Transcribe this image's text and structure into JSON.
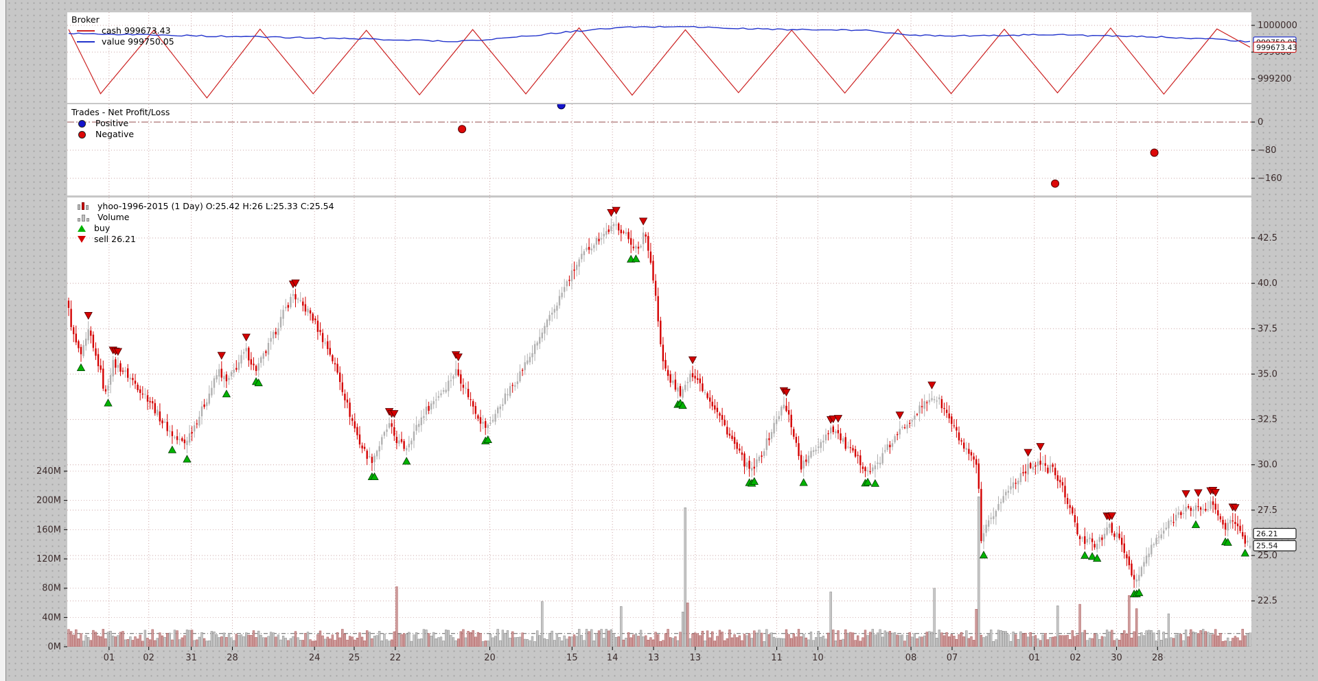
{
  "colors": {
    "bg": "#c7c7c7",
    "panel": "#ffffff",
    "grid": "#a05a5a",
    "tick_label": "#3b2b2b",
    "cash_line": "#cc2222",
    "value_line": "#2233cc",
    "positive_dot": "#1414cc",
    "negative_dot": "#dd0808",
    "candle_up": "#b0b0b0",
    "candle_down": "#d40000",
    "buy_marker": "#00b300",
    "sell_marker": "#d40000"
  },
  "broker": {
    "legend": {
      "title": "Broker",
      "items": [
        {
          "name": "cash",
          "label": "cash 999673.43"
        },
        {
          "name": "value",
          "label": "value 999750.05"
        }
      ]
    },
    "y_ticks": [
      {
        "label": "1000000",
        "value": 1000000
      },
      {
        "label": "999600",
        "value": 999600
      },
      {
        "label": "999200",
        "value": 999200
      }
    ],
    "tags": [
      {
        "label": "999750.05",
        "value": 999750.05,
        "series": "value"
      },
      {
        "label": "999673.43",
        "value": 999673.43,
        "series": "cash"
      }
    ]
  },
  "trades": {
    "legend": {
      "title": "Trades - Net Profit/Loss",
      "items": [
        {
          "name": "positive",
          "label": "Positive"
        },
        {
          "name": "negative",
          "label": "Negative"
        }
      ]
    },
    "y_ticks": [
      {
        "label": "0",
        "value": 0
      },
      {
        "label": "−80",
        "value": -80
      },
      {
        "label": "−160",
        "value": -160
      }
    ]
  },
  "main": {
    "legend": [
      {
        "icon": "candlestick-icon",
        "label": "yhoo-1996-2015 (1 Day) O:25.42 H:26 L:25.33 C:25.54"
      },
      {
        "icon": "volume-bars-icon",
        "label": "Volume"
      },
      {
        "icon": "buy-triangle-icon",
        "label": "buy"
      },
      {
        "icon": "sell-triangle-icon",
        "label": "sell 26.21"
      }
    ],
    "price_ticks": [
      {
        "label": "42.5",
        "value": 42.5
      },
      {
        "label": "40.0",
        "value": 40.0
      },
      {
        "label": "37.5",
        "value": 37.5
      },
      {
        "label": "35.0",
        "value": 35.0
      },
      {
        "label": "32.5",
        "value": 32.5
      },
      {
        "label": "30.0",
        "value": 30.0
      },
      {
        "label": "27.5",
        "value": 27.5
      },
      {
        "label": "25.0",
        "value": 25.0
      },
      {
        "label": "22.5",
        "value": 22.5
      }
    ],
    "volume_ticks": [
      {
        "label": "240M",
        "value": 240
      },
      {
        "label": "200M",
        "value": 200
      },
      {
        "label": "160M",
        "value": 160
      },
      {
        "label": "120M",
        "value": 120
      },
      {
        "label": "80M",
        "value": 80
      },
      {
        "label": "40M",
        "value": 40
      },
      {
        "label": "0M",
        "value": 0
      }
    ],
    "x_ticks": [
      {
        "f": 0.0342,
        "label": "01"
      },
      {
        "f": 0.0678,
        "label": "02"
      },
      {
        "f": 0.1038,
        "label": "31"
      },
      {
        "f": 0.1386,
        "label": "28"
      },
      {
        "f": 0.2081,
        "label": "24"
      },
      {
        "f": 0.2417,
        "label": "25"
      },
      {
        "f": 0.2765,
        "label": "22"
      },
      {
        "f": 0.3565,
        "label": "20"
      },
      {
        "f": 0.4261,
        "label": "15"
      },
      {
        "f": 0.4603,
        "label": "14"
      },
      {
        "f": 0.4951,
        "label": "13"
      },
      {
        "f": 0.5304,
        "label": "13"
      },
      {
        "f": 0.5994,
        "label": "11"
      },
      {
        "f": 0.6342,
        "label": "10"
      },
      {
        "f": 0.713,
        "label": "08"
      },
      {
        "f": 0.7478,
        "label": "07"
      },
      {
        "f": 0.8174,
        "label": "01"
      },
      {
        "f": 0.8522,
        "label": "02"
      },
      {
        "f": 0.887,
        "label": "30"
      },
      {
        "f": 0.9217,
        "label": "28"
      }
    ],
    "tags": [
      {
        "label": "26.21",
        "value": 26.21,
        "series": "sell"
      },
      {
        "label": "25.54",
        "value": 25.54,
        "series": "close"
      }
    ]
  },
  "chart_data": [
    {
      "type": "line",
      "name": "broker-value",
      "title": "Broker",
      "legend_position": "upper-left",
      "ylim": [
        998900,
        1000050
      ],
      "yticks": [
        1000000,
        999600,
        999200
      ],
      "grid": true,
      "last_value": 999750.05,
      "anchors": [
        [
          0,
          999885
        ],
        [
          0.05,
          999865
        ],
        [
          0.12,
          999840
        ],
        [
          0.2,
          999815
        ],
        [
          0.27,
          999790
        ],
        [
          0.33,
          999760
        ],
        [
          0.38,
          999825
        ],
        [
          0.43,
          999915
        ],
        [
          0.47,
          999970
        ],
        [
          0.52,
          999985
        ],
        [
          0.56,
          999955
        ],
        [
          0.62,
          999935
        ],
        [
          0.68,
          999925
        ],
        [
          0.705,
          999860
        ],
        [
          0.73,
          999850
        ],
        [
          0.78,
          999845
        ],
        [
          0.83,
          999865
        ],
        [
          0.88,
          999840
        ],
        [
          0.93,
          999825
        ],
        [
          0.97,
          999795
        ],
        [
          1.0,
          999752
        ]
      ]
    },
    {
      "type": "line",
      "name": "broker-cash",
      "style": "sawtooth",
      "last_value": 999673.43,
      "sawtooth": {
        "start": 999940,
        "first_trough_f": 0.027,
        "period_f": 0.09,
        "cycles": 12,
        "peak": 999945,
        "trough": 998950,
        "end": 999673.43
      }
    },
    {
      "type": "scatter",
      "name": "trades-net-profit-loss",
      "ylim": [
        -200,
        50
      ],
      "yticks": [
        0,
        -80,
        -160
      ],
      "zero_line": true,
      "points": [
        {
          "f": 0.333,
          "value": -20,
          "type": "negative"
        },
        {
          "f": 0.417,
          "value": 48,
          "type": "positive"
        },
        {
          "f": 0.835,
          "value": -175,
          "type": "negative"
        },
        {
          "f": 0.919,
          "value": -87,
          "type": "negative"
        }
      ]
    },
    {
      "type": "candlestick+volume",
      "name": "yhoo-1996-2015-daily",
      "n_bars": 480,
      "last_ohlc": {
        "open": 25.42,
        "high": 26,
        "low": 25.33,
        "close": 25.54
      },
      "price_ylim": [
        20,
        44.7
      ],
      "volume_ylim": [
        0,
        240
      ],
      "volume_ref_line": 18,
      "price_anchors": [
        [
          0.0,
          38.5
        ],
        [
          0.004,
          37.1
        ],
        [
          0.01,
          36.0
        ],
        [
          0.014,
          36.6
        ],
        [
          0.017,
          37.4
        ],
        [
          0.021,
          36.3
        ],
        [
          0.026,
          35.4
        ],
        [
          0.031,
          33.8
        ],
        [
          0.037,
          35.6
        ],
        [
          0.044,
          35.3
        ],
        [
          0.052,
          34.8
        ],
        [
          0.06,
          34.2
        ],
        [
          0.068,
          33.6
        ],
        [
          0.079,
          32.4
        ],
        [
          0.091,
          31.4
        ],
        [
          0.098,
          31.2
        ],
        [
          0.105,
          32.0
        ],
        [
          0.112,
          32.9
        ],
        [
          0.12,
          34.1
        ],
        [
          0.127,
          35.2
        ],
        [
          0.134,
          34.5
        ],
        [
          0.141,
          35.3
        ],
        [
          0.15,
          36.3
        ],
        [
          0.158,
          35.2
        ],
        [
          0.166,
          36.1
        ],
        [
          0.174,
          37.2
        ],
        [
          0.182,
          38.4
        ],
        [
          0.19,
          39.4
        ],
        [
          0.197,
          38.8
        ],
        [
          0.205,
          38.3
        ],
        [
          0.213,
          37.2
        ],
        [
          0.221,
          36.2
        ],
        [
          0.229,
          34.8
        ],
        [
          0.238,
          32.8
        ],
        [
          0.247,
          31.1
        ],
        [
          0.256,
          30.2
        ],
        [
          0.264,
          31.2
        ],
        [
          0.271,
          32.2
        ],
        [
          0.278,
          31.3
        ],
        [
          0.285,
          30.9
        ],
        [
          0.293,
          31.9
        ],
        [
          0.301,
          32.9
        ],
        [
          0.31,
          33.6
        ],
        [
          0.319,
          34.3
        ],
        [
          0.328,
          35.2
        ],
        [
          0.335,
          34.3
        ],
        [
          0.342,
          33.3
        ],
        [
          0.349,
          32.4
        ],
        [
          0.354,
          32.0
        ],
        [
          0.362,
          32.9
        ],
        [
          0.37,
          33.8
        ],
        [
          0.378,
          34.6
        ],
        [
          0.386,
          35.5
        ],
        [
          0.394,
          36.4
        ],
        [
          0.402,
          37.4
        ],
        [
          0.411,
          38.6
        ],
        [
          0.42,
          39.8
        ],
        [
          0.429,
          40.9
        ],
        [
          0.438,
          41.8
        ],
        [
          0.447,
          42.4
        ],
        [
          0.456,
          42.9
        ],
        [
          0.464,
          43.2
        ],
        [
          0.47,
          42.8
        ],
        [
          0.477,
          42.2
        ],
        [
          0.483,
          41.7
        ],
        [
          0.487,
          43.0
        ],
        [
          0.491,
          41.9
        ],
        [
          0.494,
          40.6
        ],
        [
          0.497,
          39.2
        ],
        [
          0.502,
          35.9
        ],
        [
          0.507,
          34.9
        ],
        [
          0.513,
          34.3
        ],
        [
          0.519,
          33.9
        ],
        [
          0.524,
          34.6
        ],
        [
          0.529,
          35.1
        ],
        [
          0.535,
          34.4
        ],
        [
          0.542,
          33.7
        ],
        [
          0.55,
          32.8
        ],
        [
          0.558,
          31.8
        ],
        [
          0.566,
          30.8
        ],
        [
          0.573,
          30.0
        ],
        [
          0.578,
          29.6
        ],
        [
          0.585,
          30.4
        ],
        [
          0.592,
          31.4
        ],
        [
          0.599,
          32.5
        ],
        [
          0.605,
          33.3
        ],
        [
          0.61,
          32.6
        ],
        [
          0.615,
          31.4
        ],
        [
          0.62,
          29.9
        ],
        [
          0.625,
          30.3
        ],
        [
          0.632,
          30.9
        ],
        [
          0.639,
          31.5
        ],
        [
          0.646,
          32.1
        ],
        [
          0.652,
          31.6
        ],
        [
          0.658,
          31.0
        ],
        [
          0.665,
          30.5
        ],
        [
          0.672,
          30.0
        ],
        [
          0.679,
          29.6
        ],
        [
          0.686,
          30.2
        ],
        [
          0.693,
          30.9
        ],
        [
          0.7,
          31.5
        ],
        [
          0.708,
          32.2
        ],
        [
          0.716,
          32.8
        ],
        [
          0.724,
          33.3
        ],
        [
          0.731,
          33.8
        ],
        [
          0.737,
          33.5
        ],
        [
          0.744,
          32.7
        ],
        [
          0.751,
          31.8
        ],
        [
          0.758,
          30.9
        ],
        [
          0.764,
          30.3
        ],
        [
          0.769,
          29.9
        ],
        [
          0.7705,
          28.5
        ],
        [
          0.772,
          25.5
        ],
        [
          0.776,
          26.4
        ],
        [
          0.782,
          27.2
        ],
        [
          0.788,
          27.9
        ],
        [
          0.795,
          28.6
        ],
        [
          0.802,
          29.2
        ],
        [
          0.809,
          29.7
        ],
        [
          0.816,
          30.0
        ],
        [
          0.822,
          30.2
        ],
        [
          0.827,
          29.7
        ],
        [
          0.832,
          29.9
        ],
        [
          0.838,
          29.1
        ],
        [
          0.844,
          28.3
        ],
        [
          0.849,
          27.3
        ],
        [
          0.854,
          26.2
        ],
        [
          0.859,
          25.7
        ],
        [
          0.864,
          26.2
        ],
        [
          0.869,
          25.5
        ],
        [
          0.875,
          26.0
        ],
        [
          0.881,
          26.6
        ],
        [
          0.887,
          26.1
        ],
        [
          0.893,
          25.3
        ],
        [
          0.899,
          24.3
        ],
        [
          0.903,
          23.4
        ],
        [
          0.907,
          24.1
        ],
        [
          0.912,
          24.9
        ],
        [
          0.918,
          25.6
        ],
        [
          0.925,
          26.2
        ],
        [
          0.932,
          26.8
        ],
        [
          0.939,
          27.3
        ],
        [
          0.946,
          27.7
        ],
        [
          0.951,
          27.3
        ],
        [
          0.956,
          27.8
        ],
        [
          0.962,
          27.4
        ],
        [
          0.967,
          27.9
        ],
        [
          0.973,
          27.3
        ],
        [
          0.979,
          26.6
        ],
        [
          0.985,
          26.9
        ],
        [
          0.99,
          26.4
        ],
        [
          0.995,
          25.9
        ],
        [
          1.0,
          25.54
        ]
      ],
      "volume_base_range": [
        7,
        24
      ],
      "volume_spikes": [
        [
          0.277,
          82,
          "dn"
        ],
        [
          0.401,
          62,
          "up"
        ],
        [
          0.468,
          55,
          "up"
        ],
        [
          0.521,
          190,
          "up"
        ],
        [
          0.5245,
          60,
          "dn"
        ],
        [
          0.646,
          75,
          "up"
        ],
        [
          0.733,
          80,
          "up"
        ],
        [
          0.771,
          205,
          "up"
        ],
        [
          0.838,
          56,
          "up"
        ],
        [
          0.8555,
          58,
          "dn"
        ],
        [
          0.897,
          70,
          "dn"
        ],
        [
          0.9035,
          52,
          "dn"
        ],
        [
          0.931,
          45,
          "up"
        ]
      ]
    }
  ]
}
